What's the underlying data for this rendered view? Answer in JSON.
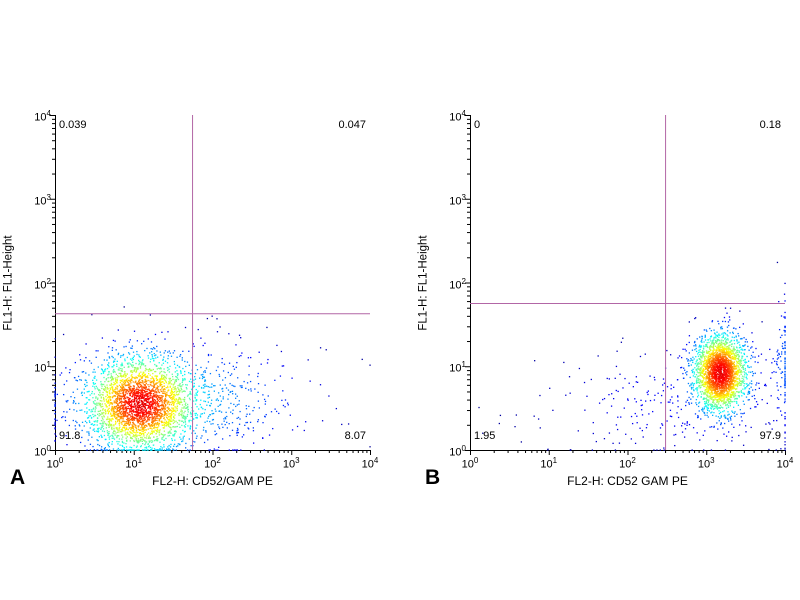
{
  "figure": {
    "background": "#ffffff",
    "axis_color": "#000000"
  },
  "chart_data": [
    {
      "type": "scatter",
      "panel_label": "A",
      "title": "",
      "xlabel": "FL2-H: CD52/GAM PE",
      "ylabel": "FL1-H:  FL1-Height",
      "x_scale": "log10",
      "y_scale": "log10",
      "xlim": [
        1,
        10000
      ],
      "ylim": [
        1,
        10000
      ],
      "ticks": {
        "exponents": [
          0,
          1,
          2,
          3,
          4
        ]
      },
      "grid": false,
      "gate": {
        "x": 55,
        "y": 43,
        "color": "#b266a6"
      },
      "quadrant_percentages": {
        "upper_left": "0.039",
        "upper_right": "0.047",
        "lower_left": "91.8",
        "lower_right": "8.07"
      },
      "populations": [
        {
          "name": "main-negative-cluster",
          "n": 2600,
          "center_log": [
            1.08,
            0.55
          ],
          "sigma_log": [
            0.32,
            0.27
          ]
        },
        {
          "name": "dim-positive-tail",
          "n": 800,
          "center_log": [
            1.5,
            0.6
          ],
          "sigma_log": [
            0.85,
            0.33
          ]
        }
      ],
      "seed": 7
    },
    {
      "type": "scatter",
      "panel_label": "B",
      "title": "",
      "xlabel": "FL2-H: CD52 GAM PE",
      "ylabel": "FL1-H:  FL1-Height",
      "x_scale": "log10",
      "y_scale": "log10",
      "xlim": [
        1,
        10000
      ],
      "ylim": [
        1,
        10000
      ],
      "ticks": {
        "exponents": [
          0,
          1,
          2,
          3,
          4
        ]
      },
      "grid": false,
      "gate": {
        "x": 300,
        "y": 57,
        "color": "#b266a6"
      },
      "quadrant_percentages": {
        "upper_left": "0",
        "upper_right": "0.18",
        "lower_left": "1.95",
        "lower_right": "97.9"
      },
      "populations": [
        {
          "name": "main-positive-cluster",
          "n": 2400,
          "center_log": [
            3.18,
            0.92
          ],
          "sigma_log": [
            0.17,
            0.23
          ]
        },
        {
          "name": "sparse-negative-scatter",
          "n": 260,
          "center_log": [
            2.5,
            0.55
          ],
          "sigma_log": [
            0.85,
            0.35
          ]
        },
        {
          "name": "edge-pileup",
          "n": 130,
          "center_log": [
            4.02,
            1.05
          ],
          "sigma_log": [
            0.12,
            0.42
          ]
        }
      ],
      "seed": 13
    }
  ]
}
